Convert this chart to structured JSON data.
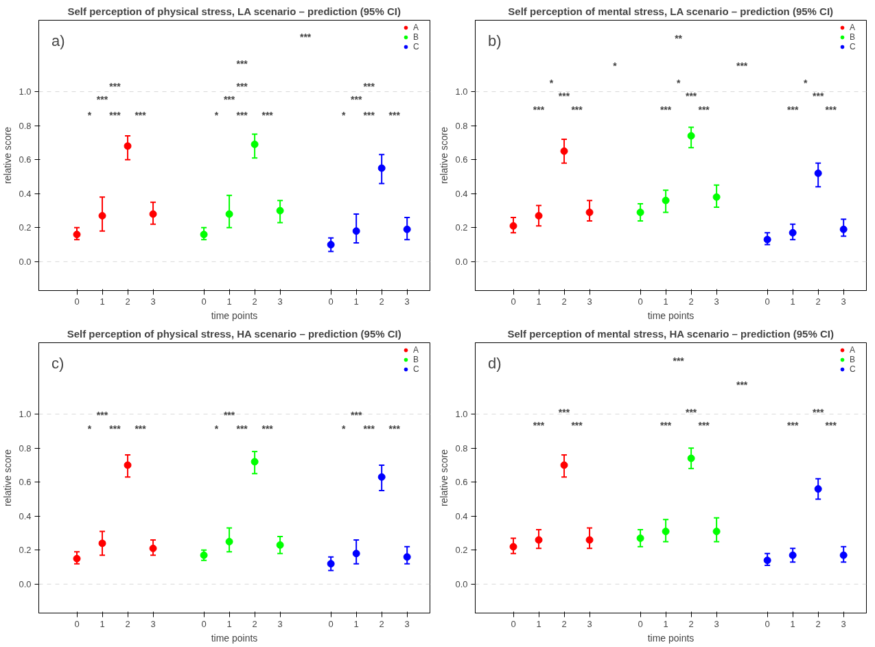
{
  "chart_data": [
    {
      "type": "scatter",
      "title": "Self perception of physical stress, LA scenario – prediction (95% CI)",
      "xlabel": "time points",
      "ylabel": "relative score",
      "ylim": [
        -0.17,
        1.42
      ],
      "categories": [
        "0",
        "1",
        "2",
        "3",
        null,
        "0",
        "1",
        "2",
        "3",
        null,
        "0",
        "1",
        "2",
        "3"
      ],
      "yticks": [
        {
          "value": 0,
          "label": "0.0"
        },
        {
          "value": 0.2,
          "label": "0.2"
        },
        {
          "value": 0.4,
          "label": "0.4"
        },
        {
          "value": 0.6,
          "label": "0.6"
        },
        {
          "value": 0.8,
          "label": "0.8"
        },
        {
          "value": 1,
          "label": "1.0"
        }
      ],
      "marker": "circle",
      "grid": false,
      "legend": "top right",
      "ref_lines": [
        {
          "axis": "y",
          "value": 0,
          "color": "#d9d9d9",
          "line_style": "dashed"
        },
        {
          "axis": "y",
          "value": 1,
          "color": "#d9d9d9",
          "line_style": "dashed"
        }
      ],
      "series": [
        {
          "name": "A",
          "color": "#ff0000",
          "values": [
            0.16,
            0.27,
            0.68,
            0.28,
            null,
            null,
            null,
            null,
            null,
            null,
            null,
            null,
            null,
            null
          ],
          "errors": [
            [
              0.13,
              0.2
            ],
            [
              0.18,
              0.38
            ],
            [
              0.6,
              0.74
            ],
            [
              0.22,
              0.35
            ],
            null,
            null,
            null,
            null,
            null,
            null,
            null,
            null,
            null,
            null
          ]
        },
        {
          "name": "B",
          "color": "#00ff00",
          "values": [
            null,
            null,
            null,
            null,
            null,
            0.16,
            0.28,
            0.69,
            0.3,
            null,
            null,
            null,
            null,
            null
          ],
          "errors": [
            null,
            null,
            null,
            null,
            null,
            [
              0.13,
              0.2
            ],
            [
              0.2,
              0.39
            ],
            [
              0.61,
              0.75
            ],
            [
              0.23,
              0.36
            ],
            null,
            null,
            null,
            null,
            null
          ]
        },
        {
          "name": "C",
          "color": "#0000ff",
          "values": [
            null,
            null,
            null,
            null,
            null,
            null,
            null,
            null,
            null,
            null,
            0.1,
            0.18,
            0.55,
            0.19
          ],
          "errors": [
            null,
            null,
            null,
            null,
            null,
            null,
            null,
            null,
            null,
            null,
            [
              0.06,
              0.14
            ],
            [
              0.11,
              0.28
            ],
            [
              0.46,
              0.63
            ],
            [
              0.13,
              0.26
            ]
          ]
        }
      ],
      "annotations": [
        "a)",
        "*",
        "***",
        "***",
        "***",
        "***",
        "*",
        "***",
        "***",
        "***",
        "***",
        "*",
        "***",
        "***",
        "***",
        "***",
        "***",
        "***"
      ]
    },
    {
      "type": "scatter",
      "title": "Self perception of mental stress, LA scenario – prediction (95% CI)",
      "xlabel": "time points",
      "ylabel": "relative score",
      "ylim": [
        -0.17,
        1.42
      ],
      "categories": [
        "0",
        "1",
        "2",
        "3",
        null,
        "0",
        "1",
        "2",
        "3",
        null,
        "0",
        "1",
        "2",
        "3"
      ],
      "yticks": [
        {
          "value": 0,
          "label": "0.0"
        },
        {
          "value": 0.2,
          "label": "0.2"
        },
        {
          "value": 0.4,
          "label": "0.4"
        },
        {
          "value": 0.6,
          "label": "0.6"
        },
        {
          "value": 0.8,
          "label": "0.8"
        },
        {
          "value": 1,
          "label": "1.0"
        }
      ],
      "marker": "circle",
      "grid": false,
      "legend": "top right",
      "ref_lines": [
        {
          "axis": "y",
          "value": 0,
          "color": "#d9d9d9",
          "line_style": "dashed"
        },
        {
          "axis": "y",
          "value": 1,
          "color": "#d9d9d9",
          "line_style": "dashed"
        }
      ],
      "series": [
        {
          "name": "A",
          "color": "#ff0000",
          "values": [
            0.21,
            0.27,
            0.65,
            0.29,
            null,
            null,
            null,
            null,
            null,
            null,
            null,
            null,
            null,
            null
          ],
          "errors": [
            [
              0.17,
              0.26
            ],
            [
              0.21,
              0.33
            ],
            [
              0.58,
              0.72
            ],
            [
              0.24,
              0.36
            ],
            null,
            null,
            null,
            null,
            null,
            null,
            null,
            null,
            null,
            null
          ]
        },
        {
          "name": "B",
          "color": "#00ff00",
          "values": [
            null,
            null,
            null,
            null,
            null,
            0.29,
            0.36,
            0.74,
            0.38,
            null,
            null,
            null,
            null,
            null
          ],
          "errors": [
            null,
            null,
            null,
            null,
            null,
            [
              0.24,
              0.34
            ],
            [
              0.29,
              0.42
            ],
            [
              0.67,
              0.79
            ],
            [
              0.32,
              0.45
            ],
            null,
            null,
            null,
            null,
            null
          ]
        },
        {
          "name": "C",
          "color": "#0000ff",
          "values": [
            null,
            null,
            null,
            null,
            null,
            null,
            null,
            null,
            null,
            null,
            0.13,
            0.17,
            0.52,
            0.19
          ],
          "errors": [
            null,
            null,
            null,
            null,
            null,
            null,
            null,
            null,
            null,
            null,
            [
              0.1,
              0.17
            ],
            [
              0.13,
              0.22
            ],
            [
              0.44,
              0.58
            ],
            [
              0.15,
              0.25
            ]
          ]
        }
      ],
      "annotations": [
        "b)",
        "***",
        "***",
        "***",
        "*",
        "***",
        "***",
        "***",
        "*",
        "***",
        "***",
        "***",
        "*",
        "*",
        "***",
        "**"
      ]
    },
    {
      "type": "scatter",
      "title": "Self perception of physical stress, HA scenario – prediction (95% CI)",
      "xlabel": "time points",
      "ylabel": "relative score",
      "ylim": [
        -0.17,
        1.42
      ],
      "categories": [
        "0",
        "1",
        "2",
        "3",
        null,
        "0",
        "1",
        "2",
        "3",
        null,
        "0",
        "1",
        "2",
        "3"
      ],
      "yticks": [
        {
          "value": 0,
          "label": "0.0"
        },
        {
          "value": 0.2,
          "label": "0.2"
        },
        {
          "value": 0.4,
          "label": "0.4"
        },
        {
          "value": 0.6,
          "label": "0.6"
        },
        {
          "value": 0.8,
          "label": "0.8"
        },
        {
          "value": 1,
          "label": "1.0"
        }
      ],
      "marker": "circle",
      "grid": false,
      "legend": "top right",
      "ref_lines": [
        {
          "axis": "y",
          "value": 0,
          "color": "#d9d9d9",
          "line_style": "dashed"
        },
        {
          "axis": "y",
          "value": 1,
          "color": "#d9d9d9",
          "line_style": "dashed"
        }
      ],
      "series": [
        {
          "name": "A",
          "color": "#ff0000",
          "values": [
            0.15,
            0.24,
            0.7,
            0.21,
            null,
            null,
            null,
            null,
            null,
            null,
            null,
            null,
            null,
            null
          ],
          "errors": [
            [
              0.12,
              0.19
            ],
            [
              0.17,
              0.31
            ],
            [
              0.63,
              0.76
            ],
            [
              0.17,
              0.26
            ],
            null,
            null,
            null,
            null,
            null,
            null,
            null,
            null,
            null,
            null
          ]
        },
        {
          "name": "B",
          "color": "#00ff00",
          "values": [
            null,
            null,
            null,
            null,
            null,
            0.17,
            0.25,
            0.72,
            0.23,
            null,
            null,
            null,
            null,
            null
          ],
          "errors": [
            null,
            null,
            null,
            null,
            null,
            [
              0.14,
              0.2
            ],
            [
              0.19,
              0.33
            ],
            [
              0.65,
              0.78
            ],
            [
              0.18,
              0.28
            ],
            null,
            null,
            null,
            null,
            null
          ]
        },
        {
          "name": "C",
          "color": "#0000ff",
          "values": [
            null,
            null,
            null,
            null,
            null,
            null,
            null,
            null,
            null,
            null,
            0.12,
            0.18,
            0.63,
            0.16
          ],
          "errors": [
            null,
            null,
            null,
            null,
            null,
            null,
            null,
            null,
            null,
            null,
            [
              0.08,
              0.16
            ],
            [
              0.12,
              0.26
            ],
            [
              0.55,
              0.7
            ],
            [
              0.12,
              0.22
            ]
          ]
        }
      ],
      "annotations": [
        "c)",
        "*",
        "***",
        "***",
        "***",
        "*",
        "***",
        "***",
        "***",
        "*",
        "***",
        "***",
        "***"
      ]
    },
    {
      "type": "scatter",
      "title": "Self perception of mental stress, HA scenario – prediction (95% CI)",
      "xlabel": "time points",
      "ylabel": "relative score",
      "ylim": [
        -0.17,
        1.42
      ],
      "categories": [
        "0",
        "1",
        "2",
        "3",
        null,
        "0",
        "1",
        "2",
        "3",
        null,
        "0",
        "1",
        "2",
        "3"
      ],
      "yticks": [
        {
          "value": 0,
          "label": "0.0"
        },
        {
          "value": 0.2,
          "label": "0.2"
        },
        {
          "value": 0.4,
          "label": "0.4"
        },
        {
          "value": 0.6,
          "label": "0.6"
        },
        {
          "value": 0.8,
          "label": "0.8"
        },
        {
          "value": 1,
          "label": "1.0"
        }
      ],
      "marker": "circle",
      "grid": false,
      "legend": "top right",
      "ref_lines": [
        {
          "axis": "y",
          "value": 0,
          "color": "#d9d9d9",
          "line_style": "dashed"
        },
        {
          "axis": "y",
          "value": 1,
          "color": "#d9d9d9",
          "line_style": "dashed"
        }
      ],
      "series": [
        {
          "name": "A",
          "color": "#ff0000",
          "values": [
            0.22,
            0.26,
            0.7,
            0.26,
            null,
            null,
            null,
            null,
            null,
            null,
            null,
            null,
            null,
            null
          ],
          "errors": [
            [
              0.18,
              0.27
            ],
            [
              0.21,
              0.32
            ],
            [
              0.63,
              0.76
            ],
            [
              0.21,
              0.33
            ],
            null,
            null,
            null,
            null,
            null,
            null,
            null,
            null,
            null,
            null
          ]
        },
        {
          "name": "B",
          "color": "#00ff00",
          "values": [
            null,
            null,
            null,
            null,
            null,
            0.27,
            0.31,
            0.74,
            0.31,
            null,
            null,
            null,
            null,
            null
          ],
          "errors": [
            null,
            null,
            null,
            null,
            null,
            [
              0.22,
              0.32
            ],
            [
              0.25,
              0.38
            ],
            [
              0.68,
              0.8
            ],
            [
              0.25,
              0.39
            ],
            null,
            null,
            null,
            null,
            null
          ]
        },
        {
          "name": "C",
          "color": "#0000ff",
          "values": [
            null,
            null,
            null,
            null,
            null,
            null,
            null,
            null,
            null,
            null,
            0.14,
            0.17,
            0.56,
            0.17
          ],
          "errors": [
            null,
            null,
            null,
            null,
            null,
            null,
            null,
            null,
            null,
            null,
            [
              0.11,
              0.18
            ],
            [
              0.13,
              0.21
            ],
            [
              0.5,
              0.62
            ],
            [
              0.13,
              0.22
            ]
          ]
        }
      ],
      "annotations": [
        "d)",
        "***",
        "***",
        "***",
        "***",
        "***",
        "***",
        "***",
        "***",
        "***",
        "***",
        "***"
      ]
    }
  ]
}
